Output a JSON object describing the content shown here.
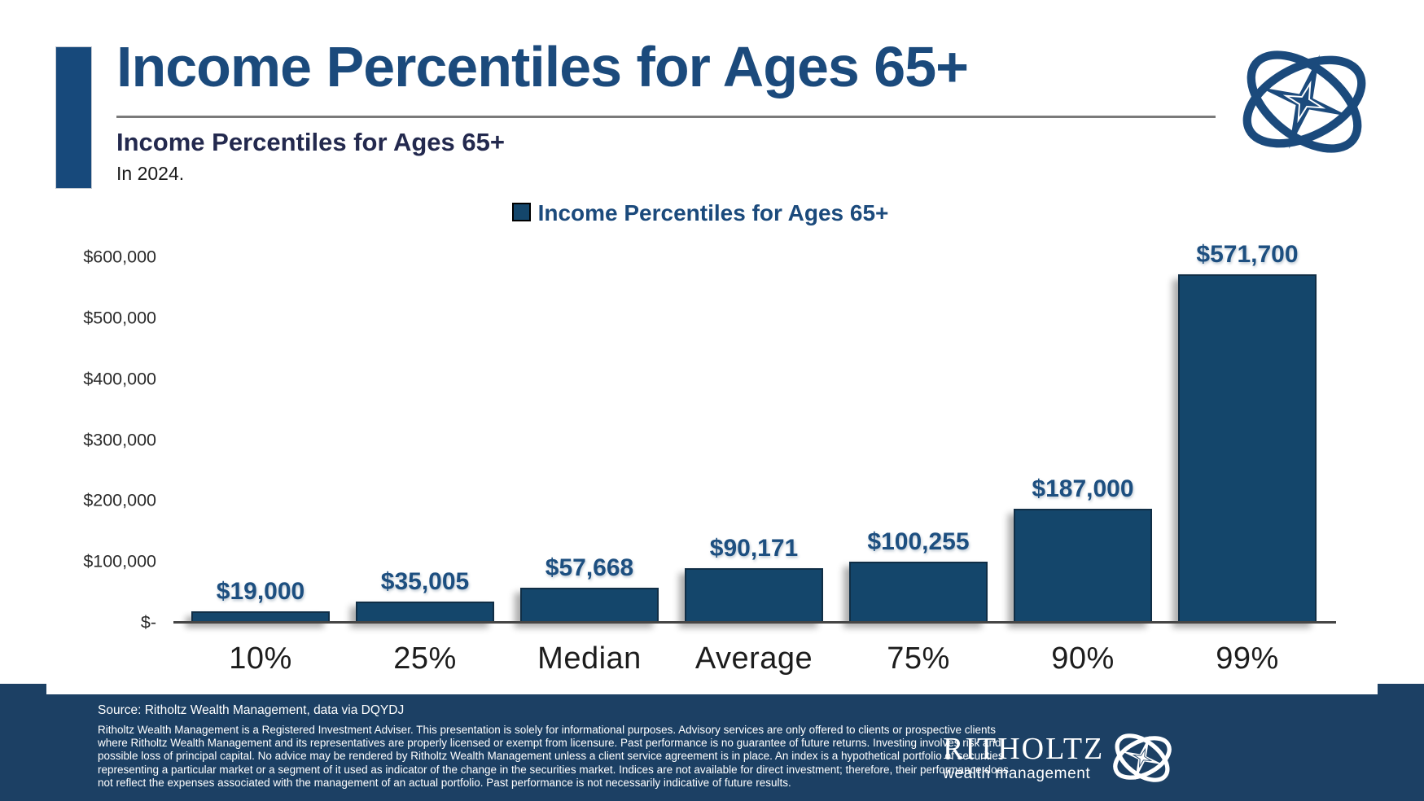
{
  "slide": {
    "title": "Income Percentiles for Ages 65+",
    "chart_title": "Income Percentiles for Ages 65+",
    "chart_period": "In 2024."
  },
  "legend": {
    "label": "Income Percentiles for Ages 65+"
  },
  "chart_data": {
    "type": "bar",
    "title": "Income Percentiles for Ages 65+",
    "subtitle": "In 2024.",
    "series_name": "Income Percentiles for Ages 65+",
    "categories": [
      "10%",
      "25%",
      "Median",
      "Average",
      "75%",
      "90%",
      "99%"
    ],
    "values": [
      19000,
      35005,
      57668,
      90171,
      100255,
      187000,
      571700
    ],
    "value_labels": [
      "$19,000",
      "$35,005",
      "$57,668",
      "$90,171",
      "$100,255",
      "$187,000",
      "$571,700"
    ],
    "y_ticks": [
      "$600,000",
      "$500,000",
      "$400,000",
      "$300,000",
      "$200,000",
      "$100,000",
      "$-"
    ],
    "ylim": [
      0,
      600000
    ],
    "xlabel": "",
    "ylabel": "",
    "grid": false,
    "legend_position": "top-center",
    "bar_color": "#14466B",
    "value_label_color": "#1D4F80"
  },
  "footer": {
    "source": "Source: Ritholtz Wealth Management, data via DQYDJ",
    "disclaimer": "Ritholtz Wealth Management is a Registered Investment Adviser. This presentation is solely for informational purposes. Advisory services are only offered to clients or prospective clients where Ritholtz Wealth Management and its representatives are properly licensed or exempt from licensure. Past performance is no guarantee of future returns. Investing involves risk and possible loss of principal capital. No advice may be rendered by Ritholtz Wealth Management unless a client service agreement is in place. An index is a hypothetical portfolio of securities representing a particular market or a segment of it used as indicator of the change in the securities market. Indices are not available for direct investment; therefore, their performance does not reflect the expenses associated with the management of an actual portfolio. Past performance is not necessarily indicative of future results.",
    "brand_name": "RITHOLTZ",
    "brand_tagline": "wealth management"
  },
  "colors": {
    "accent_navy": "#1B4A7C",
    "subtitle_navy": "#23294E",
    "bar_navy": "#14466B",
    "value_label_navy": "#1D4F80",
    "footer_navy": "#1C4064",
    "underline_gray": "#7A7A7A"
  }
}
